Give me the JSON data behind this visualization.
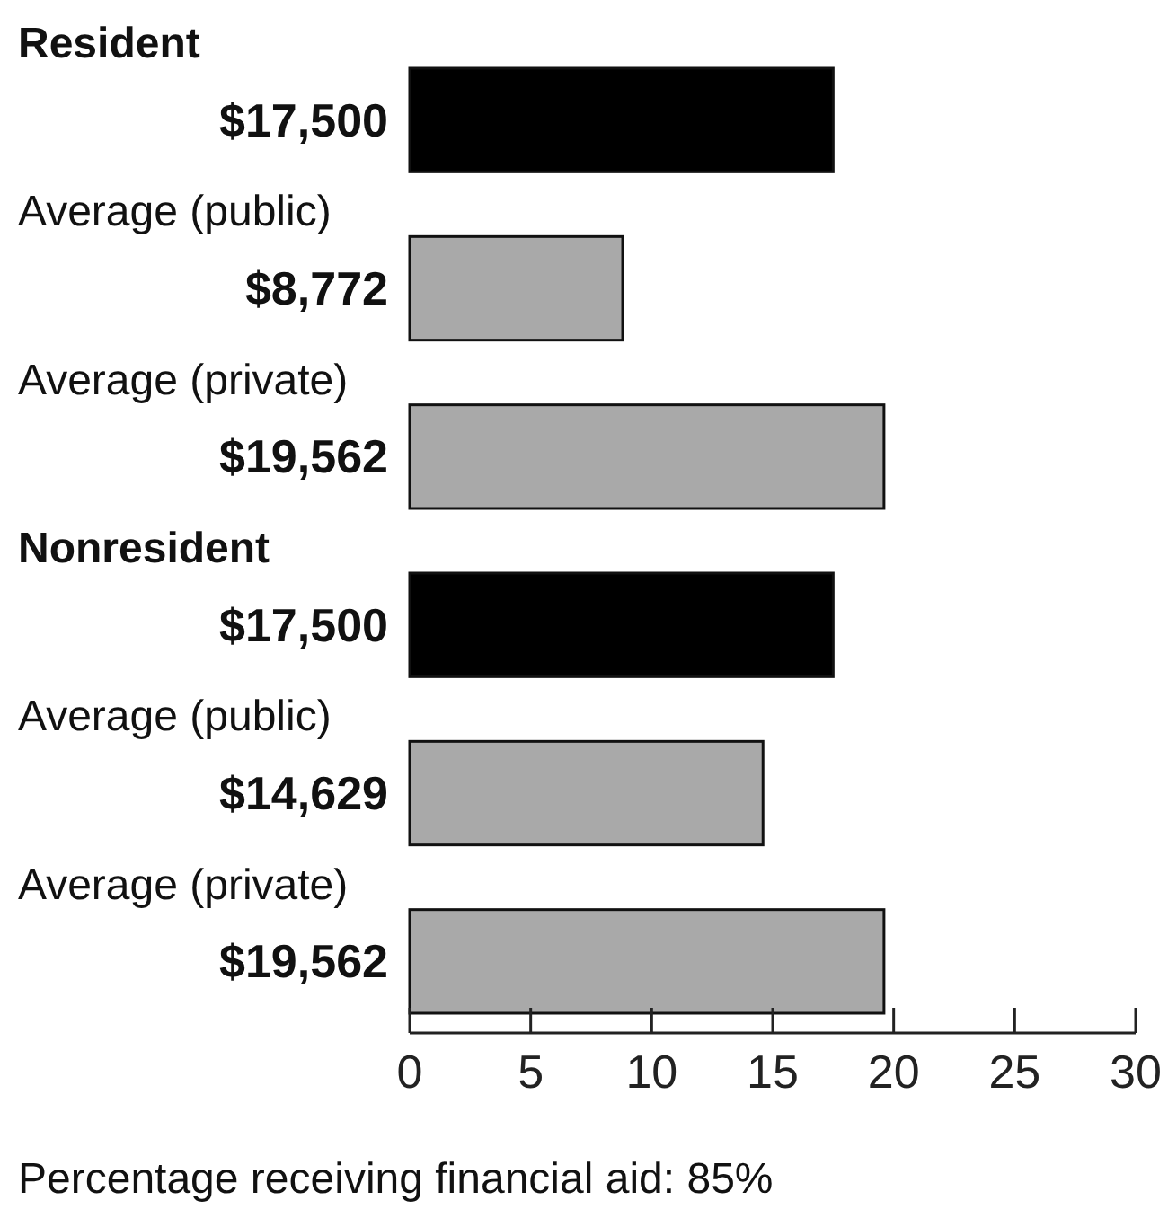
{
  "chart_data": {
    "type": "bar",
    "orientation": "horizontal",
    "categories": [
      "$17,500",
      "$8,772",
      "$19,562",
      "$17,500",
      "$14,629",
      "$19,562"
    ],
    "values": [
      17.5,
      8.8,
      19.6,
      17.5,
      14.6,
      19.6
    ],
    "colors": [
      "#000000",
      "#a9a9a9",
      "#a9a9a9",
      "#000000",
      "#a9a9a9",
      "#a9a9a9"
    ],
    "xlim": [
      0,
      30
    ],
    "xticks": [
      0,
      5,
      10,
      15,
      20,
      25,
      30
    ],
    "annotations": [
      "Resident",
      "Average (public)",
      "Average (private)",
      "Nonresident",
      "Average (public)",
      "Average (private)",
      "Percentage receiving financial aid: 85%"
    ]
  }
}
